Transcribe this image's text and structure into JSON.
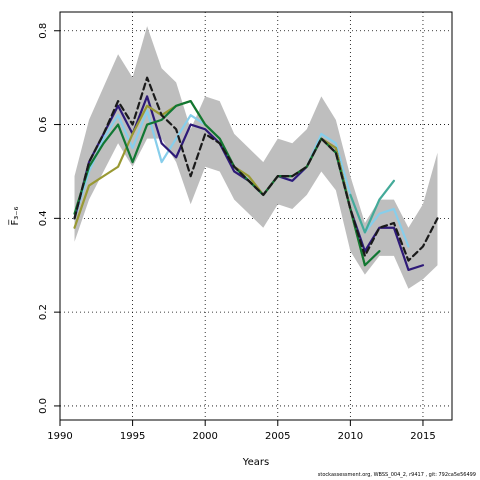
{
  "chart_data": {
    "type": "line",
    "xlabel": "Years",
    "ylabel": "F̅₃₋₆",
    "xlim": [
      1990,
      2017
    ],
    "ylim": [
      -0.03,
      0.84
    ],
    "xticks": [
      1990,
      1995,
      2000,
      2005,
      2010,
      2015
    ],
    "yticks": [
      0.0,
      0.2,
      0.4,
      0.6,
      0.8
    ],
    "ytick_labels": [
      "0.0",
      "0.2",
      "0.4",
      "0.6",
      "0.8"
    ],
    "grid": true,
    "band": {
      "color": "#bebebe",
      "x": [
        1991,
        1992,
        1993,
        1994,
        1995,
        1996,
        1997,
        1998,
        1999,
        2000,
        2001,
        2002,
        2003,
        2004,
        2005,
        2006,
        2007,
        2008,
        2009,
        2010,
        2011,
        2012,
        2013,
        2014,
        2015,
        2016
      ],
      "upper": [
        0.49,
        0.61,
        0.68,
        0.75,
        0.7,
        0.81,
        0.72,
        0.69,
        0.59,
        0.66,
        0.65,
        0.58,
        0.55,
        0.52,
        0.57,
        0.56,
        0.59,
        0.66,
        0.61,
        0.49,
        0.39,
        0.44,
        0.44,
        0.38,
        0.43,
        0.54
      ],
      "lower": [
        0.35,
        0.44,
        0.5,
        0.56,
        0.51,
        0.57,
        0.57,
        0.52,
        0.43,
        0.51,
        0.5,
        0.44,
        0.41,
        0.38,
        0.43,
        0.42,
        0.45,
        0.5,
        0.46,
        0.33,
        0.28,
        0.32,
        0.32,
        0.25,
        0.27,
        0.3
      ]
    },
    "series": [
      {
        "color": "#87ceeb",
        "dashed": false,
        "x": [
          1991,
          1992,
          1993,
          1994,
          1995,
          1996,
          1997,
          1998,
          1999,
          2000,
          2001,
          2002,
          2003,
          2004,
          2005,
          2006,
          2007,
          2008,
          2009,
          2010,
          2011,
          2012,
          2013,
          2014
        ],
        "values": [
          0.4,
          0.5,
          0.57,
          0.62,
          0.55,
          0.63,
          0.52,
          0.57,
          0.62,
          0.6,
          0.57,
          0.51,
          0.48,
          0.45,
          0.49,
          0.48,
          0.51,
          0.58,
          0.56,
          0.45,
          0.37,
          0.41,
          0.42,
          0.34
        ]
      },
      {
        "color": "#2e1a78",
        "dashed": false,
        "x": [
          1991,
          1992,
          1993,
          1994,
          1995,
          1996,
          1997,
          1998,
          1999,
          2000,
          2001,
          2002,
          2003,
          2004,
          2005,
          2006,
          2007,
          2008,
          2009,
          2010,
          2011,
          2012,
          2013,
          2014,
          2015
        ],
        "values": [
          0.4,
          0.52,
          0.58,
          0.64,
          0.58,
          0.66,
          0.56,
          0.53,
          0.6,
          0.59,
          0.56,
          0.5,
          0.48,
          0.45,
          0.49,
          0.48,
          0.51,
          0.57,
          0.55,
          0.42,
          0.33,
          0.38,
          0.38,
          0.29,
          0.3
        ]
      },
      {
        "color": "#999933",
        "dashed": false,
        "x": [
          1991,
          1992,
          1993,
          1994,
          1995,
          1996,
          1997,
          1998,
          1999,
          2000,
          2001,
          2002,
          2003,
          2004,
          2005,
          2006,
          2007,
          2008,
          2009,
          2010,
          2011
        ],
        "values": [
          0.38,
          0.47,
          0.49,
          0.51,
          0.58,
          0.64,
          0.62,
          0.64,
          0.65,
          0.6,
          0.57,
          0.51,
          0.49,
          0.45,
          0.49,
          0.49,
          0.51,
          0.57,
          0.55,
          0.42,
          0.3
        ]
      },
      {
        "color": "#117733",
        "dashed": false,
        "x": [
          1991,
          1992,
          1993,
          1994,
          1995,
          1996,
          1997,
          1998,
          1999,
          2000,
          2001,
          2002,
          2003,
          2004,
          2005,
          2006,
          2007,
          2008,
          2009,
          2010,
          2011,
          2012
        ],
        "values": [
          0.41,
          0.51,
          0.56,
          0.6,
          0.52,
          0.6,
          0.61,
          0.64,
          0.65,
          0.6,
          0.57,
          0.51,
          0.48,
          0.45,
          0.49,
          0.49,
          0.51,
          0.57,
          0.54,
          0.42,
          0.3,
          0.33
        ]
      },
      {
        "color": "#44aa99",
        "dashed": false,
        "x": [
          2010,
          2011,
          2012,
          2013
        ],
        "values": [
          0.45,
          0.37,
          0.44,
          0.48
        ]
      },
      {
        "color": "#1a1a1a",
        "dashed": true,
        "x": [
          1991,
          1992,
          1993,
          1994,
          1995,
          1996,
          1997,
          1998,
          1999,
          2000,
          2001,
          2002,
          2003,
          2004,
          2005,
          2006,
          2007,
          2008,
          2009,
          2010,
          2011,
          2012,
          2013,
          2014,
          2015,
          2016
        ],
        "values": [
          0.4,
          0.52,
          0.58,
          0.65,
          0.6,
          0.7,
          0.62,
          0.59,
          0.49,
          0.58,
          0.56,
          0.51,
          0.48,
          0.45,
          0.49,
          0.49,
          0.51,
          0.57,
          0.54,
          0.42,
          0.32,
          0.38,
          0.39,
          0.31,
          0.34,
          0.4
        ]
      }
    ]
  },
  "footer_text": "stockassessment.org, WBSS_004_2, r9417 , git: 792ca5e56499"
}
